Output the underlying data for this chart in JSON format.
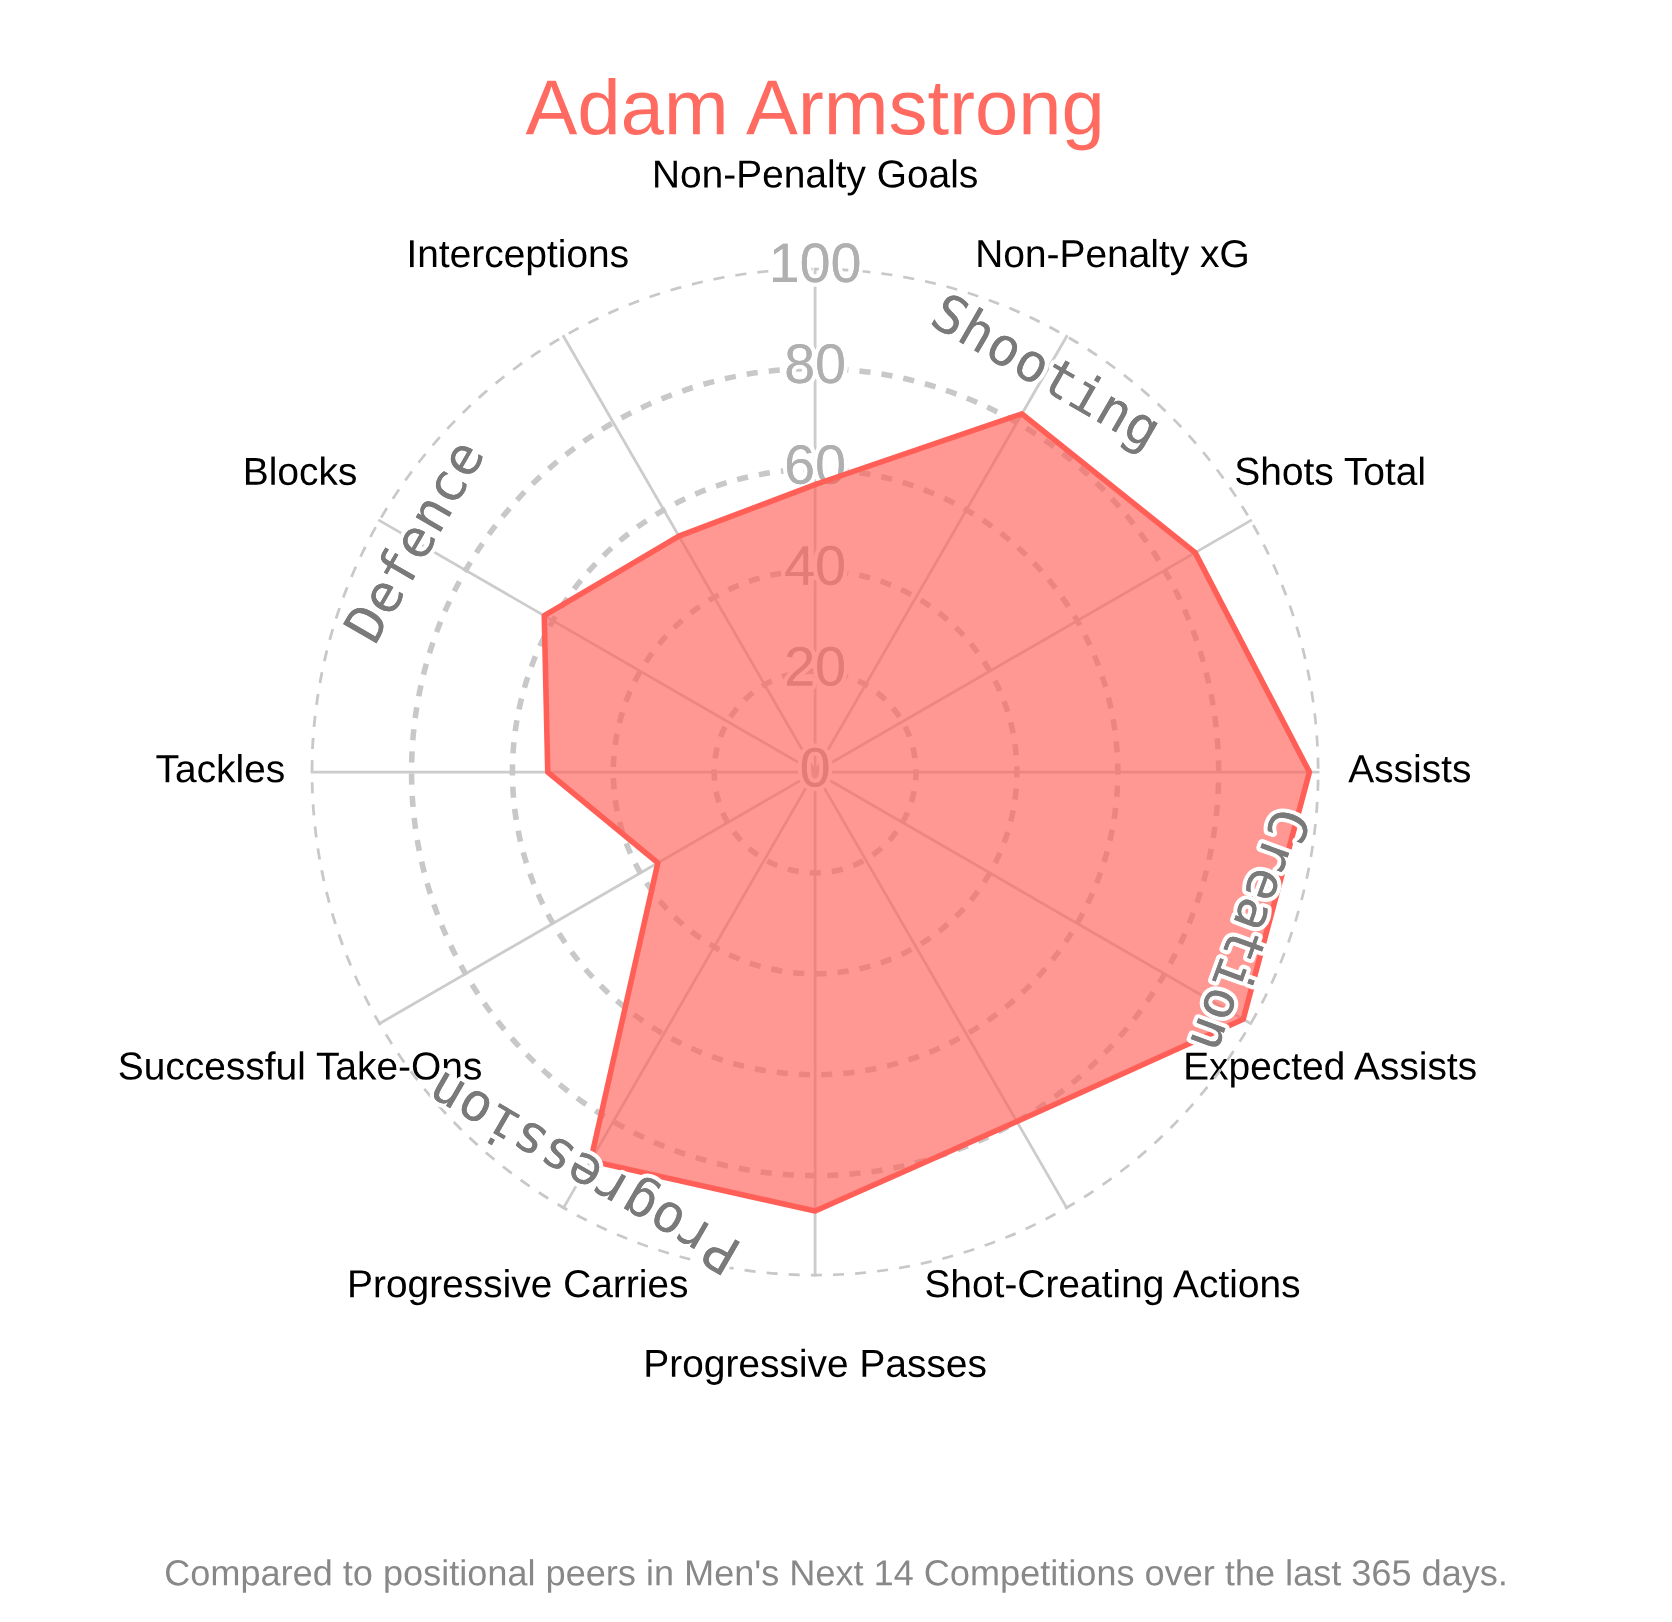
{
  "chart_data": {
    "type": "radar",
    "title": "Adam Armstrong",
    "categories": [
      "Non-Penalty Goals",
      "Non-Penalty xG",
      "Shots Total",
      "Assists",
      "Expected Assists",
      "Shot-Creating Actions",
      "Progressive Passes",
      "Progressive Carries",
      "Successful Take-Ons",
      "Tackles",
      "Blocks",
      "Interceptions"
    ],
    "series": [
      {
        "color": "#ff5f57",
        "values": [
          57,
          82,
          87,
          98,
          98,
          80,
          87,
          89,
          36,
          53,
          62,
          54
        ]
      }
    ],
    "ylim": [
      0,
      100
    ],
    "yticks": [
      0,
      20,
      40,
      60,
      80,
      100
    ],
    "grid": true,
    "line_style": "solid",
    "marker": "none",
    "annotations": [
      "Shooting",
      "Creation",
      "Progression",
      "Defence",
      "Compared to positional peers in Men's Next 14 Competitions over the last 365 days."
    ]
  }
}
